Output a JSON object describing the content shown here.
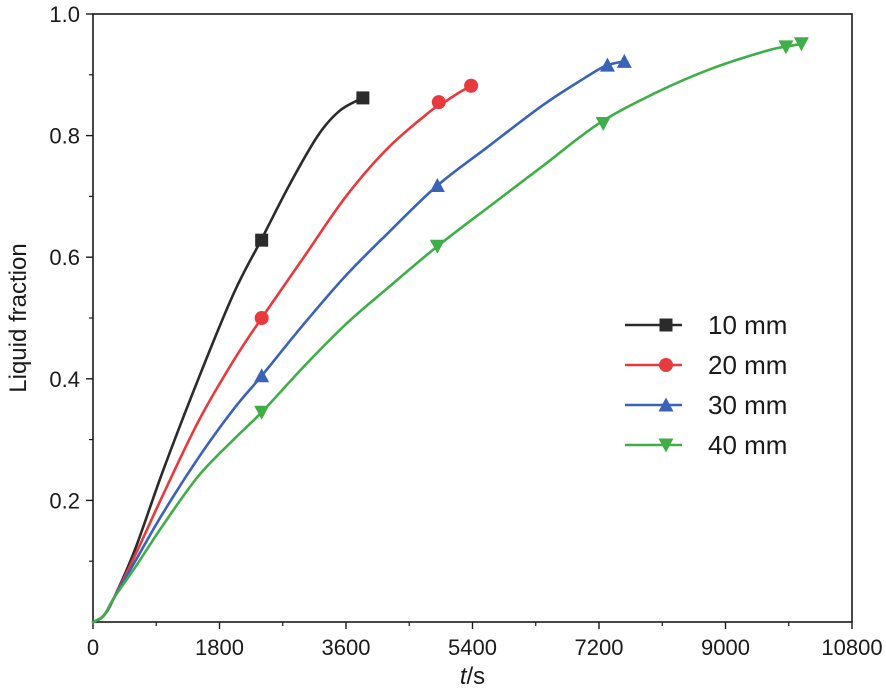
{
  "chart_data": {
    "type": "line",
    "title": "",
    "xlabel": {
      "italic": "t",
      "rest": "/s"
    },
    "ylabel": "Liquid fraction",
    "xlim": [
      0,
      10800
    ],
    "ylim": [
      0,
      1.0
    ],
    "xticks": [
      0,
      1800,
      3600,
      5400,
      7200,
      9000,
      10800
    ],
    "xtick_labels": [
      "0",
      "1800",
      "3600",
      "5400",
      "7200",
      "9000",
      "10800"
    ],
    "yticks": [
      0.2,
      0.4,
      0.6,
      0.8,
      1.0
    ],
    "ytick_labels": [
      "0.2",
      "0.4",
      "0.6",
      "0.8",
      "1.0"
    ],
    "grid": false,
    "legend_position": "right",
    "series": [
      {
        "name": "10 mm",
        "color": "#2b2b2b",
        "marker": "square",
        "curve": [
          [
            0,
            0
          ],
          [
            150,
            0.01
          ],
          [
            300,
            0.04
          ],
          [
            600,
            0.12
          ],
          [
            1000,
            0.25
          ],
          [
            1500,
            0.4
          ],
          [
            2000,
            0.54
          ],
          [
            2400,
            0.63
          ],
          [
            2800,
            0.72
          ],
          [
            3200,
            0.8
          ],
          [
            3500,
            0.84
          ],
          [
            3800,
            0.86
          ]
        ],
        "points": [
          [
            2400,
            0.628
          ],
          [
            3840,
            0.862
          ]
        ]
      },
      {
        "name": "20 mm",
        "color": "#e8393c",
        "marker": "circle",
        "curve": [
          [
            0,
            0
          ],
          [
            150,
            0.01
          ],
          [
            300,
            0.04
          ],
          [
            600,
            0.11
          ],
          [
            1000,
            0.21
          ],
          [
            1500,
            0.33
          ],
          [
            2000,
            0.43
          ],
          [
            2400,
            0.5
          ],
          [
            3000,
            0.6
          ],
          [
            3600,
            0.7
          ],
          [
            4200,
            0.78
          ],
          [
            4800,
            0.84
          ],
          [
            5000,
            0.855
          ],
          [
            5200,
            0.87
          ],
          [
            5380,
            0.882
          ]
        ],
        "points": [
          [
            2400,
            0.5
          ],
          [
            4920,
            0.855
          ],
          [
            5380,
            0.882
          ]
        ]
      },
      {
        "name": "30 mm",
        "color": "#3a62b8",
        "marker": "triangle-up",
        "curve": [
          [
            0,
            0
          ],
          [
            150,
            0.01
          ],
          [
            300,
            0.04
          ],
          [
            600,
            0.1
          ],
          [
            1000,
            0.18
          ],
          [
            1500,
            0.27
          ],
          [
            2000,
            0.35
          ],
          [
            2400,
            0.405
          ],
          [
            3000,
            0.49
          ],
          [
            3600,
            0.57
          ],
          [
            4200,
            0.64
          ],
          [
            4900,
            0.718
          ],
          [
            5600,
            0.78
          ],
          [
            6400,
            0.85
          ],
          [
            7000,
            0.895
          ],
          [
            7300,
            0.915
          ],
          [
            7560,
            0.922
          ]
        ],
        "points": [
          [
            2400,
            0.405
          ],
          [
            4900,
            0.718
          ],
          [
            7320,
            0.916
          ],
          [
            7560,
            0.922
          ]
        ]
      },
      {
        "name": "40 mm",
        "color": "#3fae49",
        "marker": "triangle-down",
        "curve": [
          [
            0,
            0
          ],
          [
            150,
            0.01
          ],
          [
            300,
            0.04
          ],
          [
            600,
            0.09
          ],
          [
            1000,
            0.16
          ],
          [
            1500,
            0.24
          ],
          [
            2000,
            0.3
          ],
          [
            2400,
            0.345
          ],
          [
            3000,
            0.42
          ],
          [
            3600,
            0.49
          ],
          [
            4200,
            0.55
          ],
          [
            4900,
            0.618
          ],
          [
            5600,
            0.68
          ],
          [
            6400,
            0.75
          ],
          [
            7200,
            0.82
          ],
          [
            8000,
            0.87
          ],
          [
            8800,
            0.91
          ],
          [
            9600,
            0.94
          ],
          [
            9900,
            0.947
          ],
          [
            10080,
            0.951
          ]
        ],
        "points": [
          [
            2400,
            0.345
          ],
          [
            4900,
            0.618
          ],
          [
            7260,
            0.82
          ],
          [
            9860,
            0.946
          ],
          [
            10080,
            0.951
          ]
        ]
      }
    ]
  }
}
